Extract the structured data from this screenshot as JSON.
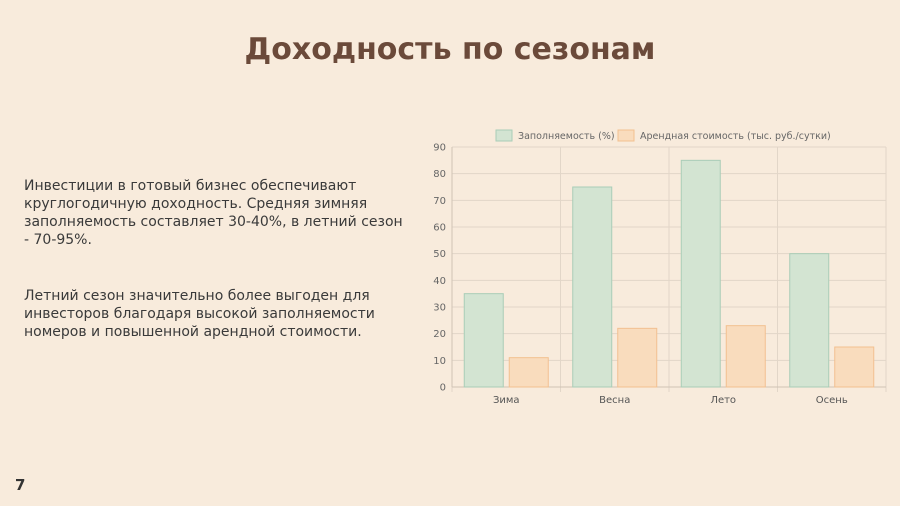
{
  "slide": {
    "title": "Доходность по сезонам",
    "paragraphs": [
      "Инвестиции в готовый бизнес обеспечивают круглогодичную доходность. Средняя зимняя заполняемость составляет 30-40%, в летний сезон - 70-95%.",
      "Летний сезон значительно более выгоден для инвесторов благодаря высокой заполняемости номеров и повышенной арендной стоимости."
    ],
    "page_number": "7"
  },
  "chart_data": {
    "type": "bar",
    "categories": [
      "Зима",
      "Весна",
      "Лето",
      "Осень"
    ],
    "series": [
      {
        "name": "Заполняемость (%)",
        "values": [
          35,
          75,
          85,
          50
        ],
        "color": "#d3e4d2",
        "border": "#a9cdb7"
      },
      {
        "name": "Арендная стоимость (тыс. руб./сутки)",
        "values": [
          11,
          22,
          23,
          15
        ],
        "color": "#f9dcbd",
        "border": "#f2c090"
      }
    ],
    "ylim": [
      0,
      90
    ],
    "yticks": [
      0,
      10,
      20,
      30,
      40,
      50,
      60,
      70,
      80,
      90
    ],
    "grid": true,
    "legend": "top"
  }
}
